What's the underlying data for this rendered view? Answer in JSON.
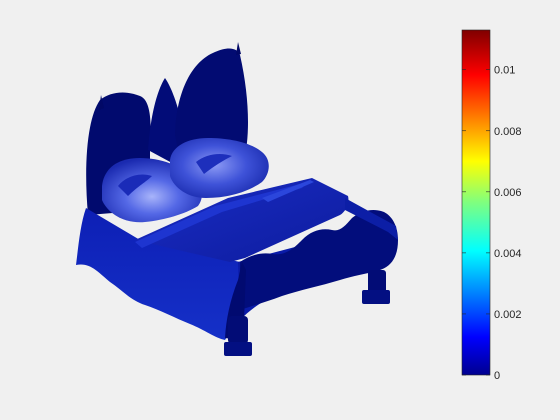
{
  "chart_data": {
    "type": "heatmap",
    "title": "",
    "xlabel": "",
    "ylabel": "",
    "colormap": "jet",
    "clim": [
      0,
      0.0113
    ],
    "colorbar": {
      "ticks": [
        {
          "value": 0,
          "label": "0"
        },
        {
          "value": 0.002,
          "label": "0.002"
        },
        {
          "value": 0.004,
          "label": "0.004"
        },
        {
          "value": 0.006,
          "label": "0.006"
        },
        {
          "value": 0.008,
          "label": "0.008"
        },
        {
          "value": 0.01,
          "label": "0.01"
        }
      ],
      "placement": "right"
    },
    "surface": {
      "object": "bed",
      "value_range": [
        0,
        0.0025
      ],
      "colors": {
        "dark": "#00007a",
        "mid": "#0a1ea8",
        "light": "#4a5fe0",
        "highlight": "#8d9bf5"
      }
    }
  },
  "background": "#f0f0f0"
}
